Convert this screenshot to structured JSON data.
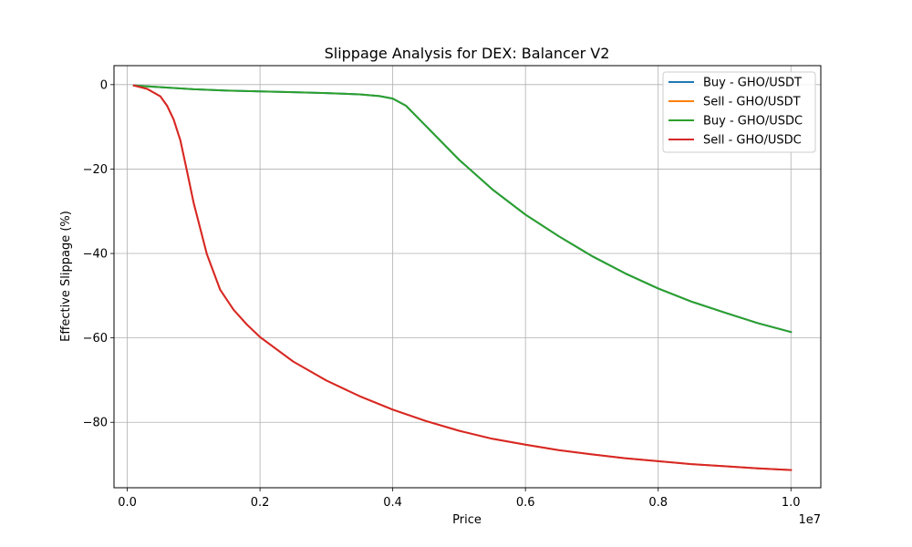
{
  "chart_data": {
    "type": "line",
    "title": "Slippage Analysis for DEX: Balancer V2",
    "xlabel": "Price",
    "ylabel": "Effective Slippage (%)",
    "x_offset_label": "1e7",
    "x_scale": 10000000,
    "xlim": [
      -0.02,
      1.045
    ],
    "ylim": [
      -95.5,
      4.5
    ],
    "x_ticks": [
      0.0,
      0.2,
      0.4,
      0.6,
      0.8,
      1.0
    ],
    "x_tick_labels": [
      "0.0",
      "0.2",
      "0.4",
      "0.6",
      "0.8",
      "1.0"
    ],
    "y_ticks": [
      0,
      -20,
      -40,
      -60,
      -80
    ],
    "y_tick_labels": [
      "0",
      "−20",
      "−40",
      "−60",
      "−80"
    ],
    "grid": true,
    "legend_position": "top-right",
    "series": [
      {
        "name": "Buy - GHO/USDT",
        "color": "#1f77b4",
        "x": [
          0.01,
          0.05,
          0.1,
          0.15,
          0.2,
          0.25,
          0.3,
          0.35,
          0.38,
          0.4,
          0.42,
          0.45,
          0.5,
          0.55,
          0.6,
          0.65,
          0.7,
          0.75,
          0.8,
          0.85,
          0.9,
          0.95,
          1.0
        ],
        "y": [
          -0.2,
          -0.6,
          -1.1,
          -1.4,
          -1.6,
          -1.8,
          -2.0,
          -2.3,
          -2.7,
          -3.3,
          -5.0,
          -9.8,
          -17.8,
          -24.8,
          -30.8,
          -35.9,
          -40.6,
          -44.7,
          -48.3,
          -51.4,
          -54.0,
          -56.5,
          -58.6
        ]
      },
      {
        "name": "Sell - GHO/USDT",
        "color": "#ff7f0e",
        "x": [
          0.01,
          0.03,
          0.05,
          0.06,
          0.07,
          0.08,
          0.09,
          0.1,
          0.12,
          0.14,
          0.16,
          0.18,
          0.2,
          0.25,
          0.3,
          0.35,
          0.4,
          0.45,
          0.5,
          0.55,
          0.6,
          0.65,
          0.7,
          0.75,
          0.8,
          0.85,
          0.9,
          0.95,
          1.0
        ],
        "y": [
          -0.2,
          -1.0,
          -2.8,
          -5.0,
          -8.3,
          -13.2,
          -20.5,
          -28.0,
          -40.2,
          -48.6,
          -53.3,
          -56.8,
          -59.8,
          -65.6,
          -70.1,
          -73.8,
          -77.0,
          -79.7,
          -82.0,
          -83.9,
          -85.3,
          -86.6,
          -87.6,
          -88.5,
          -89.2,
          -89.9,
          -90.4,
          -90.9,
          -91.3
        ]
      },
      {
        "name": "Buy - GHO/USDC",
        "color": "#2ca02c",
        "x": [
          0.01,
          0.05,
          0.1,
          0.15,
          0.2,
          0.25,
          0.3,
          0.35,
          0.38,
          0.4,
          0.42,
          0.45,
          0.5,
          0.55,
          0.6,
          0.65,
          0.7,
          0.75,
          0.8,
          0.85,
          0.9,
          0.95,
          1.0
        ],
        "y": [
          -0.2,
          -0.6,
          -1.1,
          -1.4,
          -1.6,
          -1.8,
          -2.0,
          -2.3,
          -2.7,
          -3.3,
          -5.0,
          -9.8,
          -17.8,
          -24.8,
          -30.8,
          -35.9,
          -40.6,
          -44.7,
          -48.3,
          -51.4,
          -54.0,
          -56.5,
          -58.6
        ]
      },
      {
        "name": "Sell - GHO/USDC",
        "color": "#d62728",
        "x": [
          0.01,
          0.03,
          0.05,
          0.06,
          0.07,
          0.08,
          0.09,
          0.1,
          0.12,
          0.14,
          0.16,
          0.18,
          0.2,
          0.25,
          0.3,
          0.35,
          0.4,
          0.45,
          0.5,
          0.55,
          0.6,
          0.65,
          0.7,
          0.75,
          0.8,
          0.85,
          0.9,
          0.95,
          1.0
        ],
        "y": [
          -0.2,
          -1.0,
          -2.8,
          -5.0,
          -8.3,
          -13.2,
          -20.5,
          -28.0,
          -40.2,
          -48.6,
          -53.3,
          -56.8,
          -59.8,
          -65.6,
          -70.1,
          -73.8,
          -77.0,
          -79.7,
          -82.0,
          -83.9,
          -85.3,
          -86.6,
          -87.6,
          -88.5,
          -89.2,
          -89.9,
          -90.4,
          -90.9,
          -91.3
        ]
      }
    ]
  }
}
